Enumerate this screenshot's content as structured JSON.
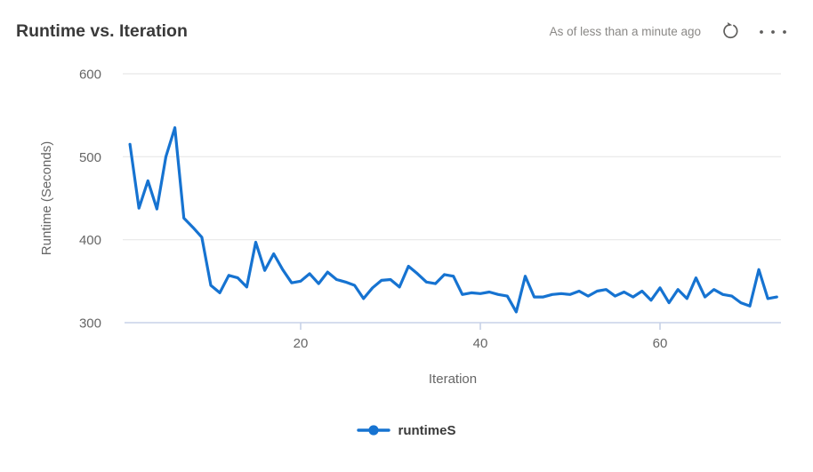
{
  "header": {
    "title": "Runtime vs. Iteration",
    "as_of_text": "As of less than a minute ago",
    "refresh_icon": "refresh-circular-arrow",
    "more_icon": "ellipsis-three-dots"
  },
  "legend": {
    "series_label": "runtimeS",
    "marker": "blue-dot-on-line"
  },
  "colors": {
    "series_line": "#1673d1",
    "title_text": "#3a3a3a",
    "header_muted_text": "#8a8886",
    "axis_text": "#666666",
    "gridline": "#e8e8e8",
    "axis_line": "#c7d2e8",
    "icon_gray": "#5f5e5c"
  },
  "chart_data": {
    "type": "line",
    "title": "Runtime vs. Iteration",
    "xlabel": "Iteration",
    "ylabel": "Runtime (Seconds)",
    "x_ticks": [
      20,
      40,
      60
    ],
    "y_ticks": [
      300,
      400,
      500,
      600
    ],
    "ylim": [
      300,
      600
    ],
    "xlim": [
      0,
      74
    ],
    "grid": "horizontal-only",
    "legend_position": "bottom-center",
    "series": [
      {
        "name": "runtimeS",
        "x_start": 1,
        "x_step": 1,
        "values": [
          515,
          438,
          471,
          437,
          500,
          535,
          426,
          415,
          403,
          345,
          336,
          357,
          354,
          343,
          397,
          363,
          383,
          364,
          348,
          350,
          359,
          347,
          361,
          352,
          349,
          345,
          329,
          342,
          351,
          352,
          343,
          368,
          359,
          349,
          347,
          358,
          356,
          334,
          336,
          335,
          337,
          334,
          332,
          313,
          356,
          331,
          331,
          334,
          335,
          334,
          338,
          332,
          338,
          340,
          332,
          337,
          331,
          338,
          327,
          342,
          324,
          340,
          329,
          354,
          331,
          340,
          334,
          332,
          324,
          320,
          364,
          329,
          331
        ]
      }
    ]
  }
}
